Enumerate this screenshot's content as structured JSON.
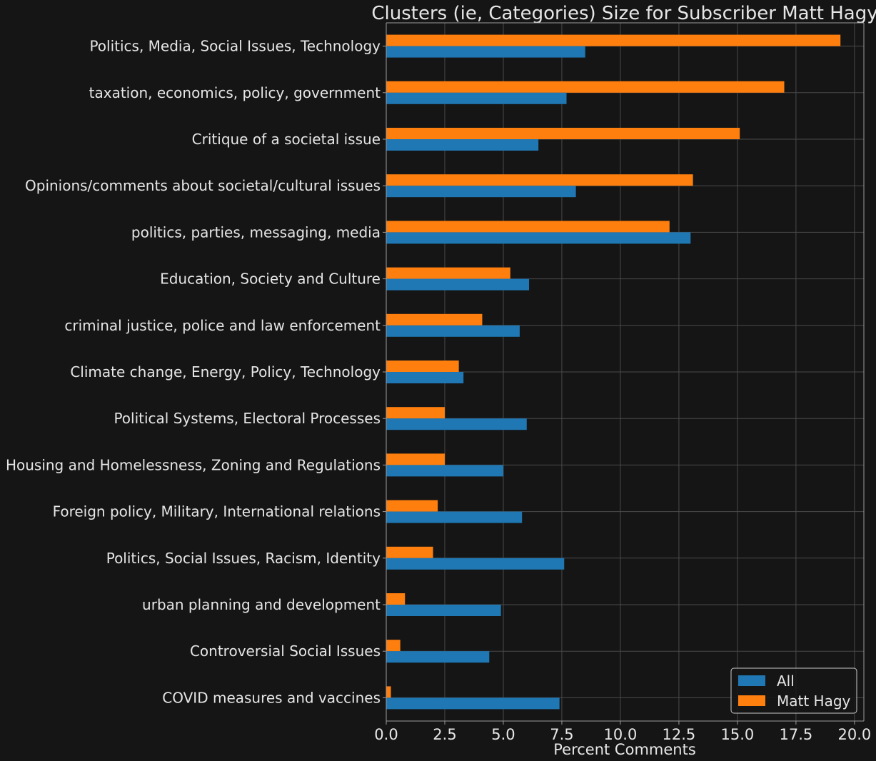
{
  "chart_data": {
    "type": "bar",
    "orientation": "horizontal",
    "title": "Clusters (ie, Categories) Size for Subscriber Matt Hagy",
    "xlabel": "Percent Comments",
    "ylabel": "",
    "xlim": [
      0,
      20.4
    ],
    "xticks": [
      0.0,
      2.5,
      5.0,
      7.5,
      10.0,
      12.5,
      15.0,
      17.5,
      20.0
    ],
    "xtick_labels": [
      "0.0",
      "2.5",
      "5.0",
      "7.5",
      "10.0",
      "12.5",
      "15.0",
      "17.5",
      "20.0"
    ],
    "grid": true,
    "legend_position": "bottom-right",
    "categories": [
      "Politics, Media, Social Issues, Technology",
      "taxation, economics, policy, government",
      "Critique of a societal issue",
      "Opinions/comments about societal/cultural issues",
      "politics, parties, messaging, media",
      "Education, Society and Culture",
      "criminal justice, police and law enforcement",
      "Climate change, Energy, Policy, Technology",
      "Political Systems, Electoral Processes",
      "Housing and Homelessness, Zoning and Regulations",
      "Foreign policy, Military, International relations",
      "Politics, Social Issues, Racism, Identity",
      "urban planning and development",
      "Controversial Social Issues",
      "COVID measures and vaccines"
    ],
    "series": [
      {
        "name": "All",
        "color": "#1f77b4",
        "values": [
          8.5,
          7.7,
          6.5,
          8.1,
          13.0,
          6.1,
          5.7,
          3.3,
          6.0,
          5.0,
          5.8,
          7.6,
          4.9,
          4.4,
          7.4
        ]
      },
      {
        "name": "Matt Hagy",
        "color": "#ff7f0e",
        "values": [
          19.4,
          17.0,
          15.1,
          13.1,
          12.1,
          5.3,
          4.1,
          3.1,
          2.5,
          2.5,
          2.2,
          2.0,
          0.8,
          0.6,
          0.2
        ]
      }
    ]
  },
  "colors": {
    "background": "#151515",
    "grid": "#4a4a4a",
    "text": "#e6e6e6",
    "axis": "#9a9a9a"
  }
}
